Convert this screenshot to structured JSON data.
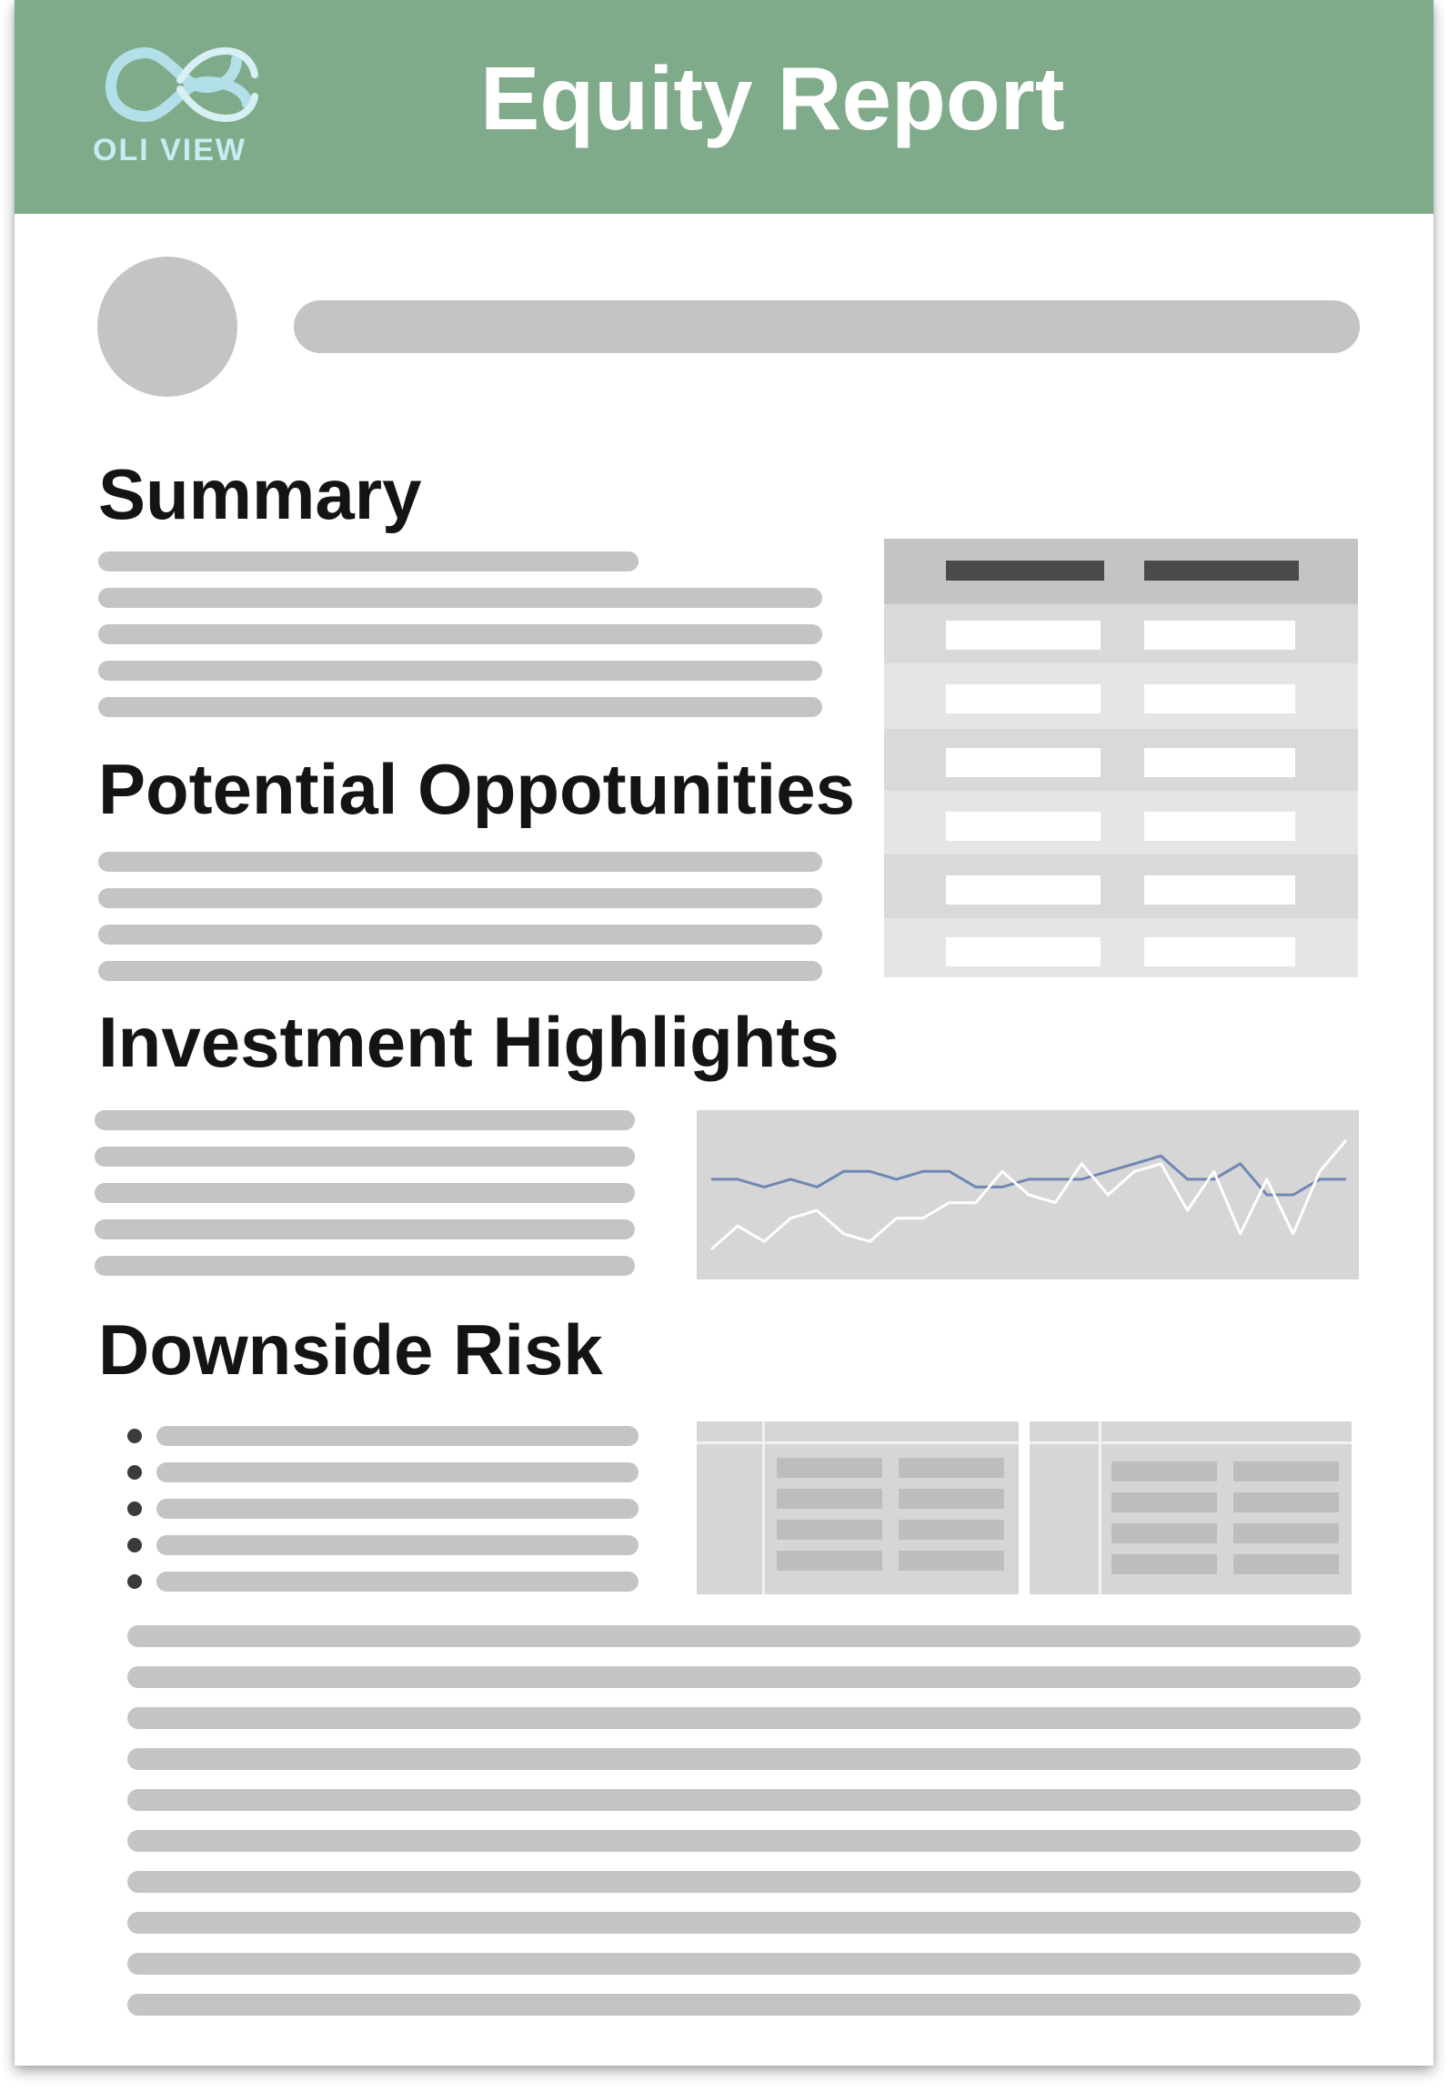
{
  "header": {
    "brand": "OLI VIEW",
    "title": "Equity Report",
    "logo_icon": "infinity-logo-icon",
    "background_color": "#80ab8b",
    "logo_color": "#b3e0e8"
  },
  "sections": {
    "summary": "Summary",
    "opportunities": "Potential Oppotunities",
    "highlights": "Investment Highlights",
    "risk": "Downside Risk"
  },
  "placeholder_color": "#c4c4c4",
  "chart_data": {
    "type": "line",
    "series": [
      {
        "values": [
          3,
          3,
          2,
          3,
          2,
          4,
          4,
          3,
          4,
          4,
          2,
          2,
          3,
          3,
          3,
          4,
          5,
          6,
          3,
          3,
          5,
          1,
          1,
          3,
          3
        ]
      },
      {
        "values": [
          -6,
          -3,
          -5,
          -2,
          -1,
          -4,
          -5,
          -2,
          -2,
          0,
          0,
          4,
          1,
          0,
          5,
          1,
          4,
          5,
          -1,
          4,
          -4,
          3,
          -4,
          4,
          8
        ]
      }
    ],
    "series_colors": [
      "#6f87b5",
      "#ffffff"
    ],
    "ylim": [
      -8,
      10
    ],
    "grid": false,
    "legend": "none"
  }
}
